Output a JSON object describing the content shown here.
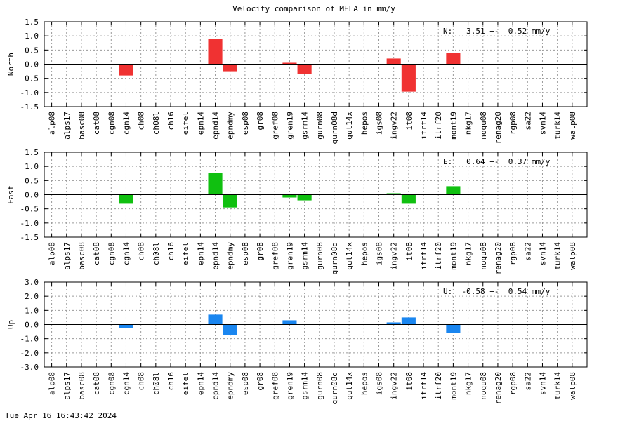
{
  "footer_timestamp": "Tue Apr 16 16:43:42 2024",
  "chart_data": {
    "type": "bar",
    "title": "Velocity comparison of MELA in mm/y",
    "categories": [
      "alp08",
      "alps17",
      "basc08",
      "cat08",
      "cgn08",
      "cgn14",
      "ch08",
      "ch08l",
      "ch16",
      "eifel",
      "epn14",
      "epnd14",
      "epndmy",
      "esp08",
      "gr08",
      "gref08",
      "gren19",
      "gsrm14",
      "gurn08",
      "gurn08d",
      "gut14x",
      "hepos",
      "igs08",
      "ingv22",
      "it08",
      "itrf14",
      "itrf20",
      "mont19",
      "nkg17",
      "noqu08",
      "renag20",
      "rgp08",
      "sa22",
      "svn14",
      "turk14",
      "walp08"
    ],
    "grid": true,
    "panels": [
      {
        "ylabel": "North",
        "annotation": "N:   3.51 +-  0.52 mm/y",
        "ylim": [
          -1.5,
          1.5
        ],
        "yticks": [
          "1.5",
          "1.0",
          "0.5",
          "0.0",
          "-0.5",
          "-1.0",
          "-1.5"
        ],
        "color": "#f03232",
        "values": [
          null,
          null,
          null,
          null,
          null,
          -0.4,
          null,
          null,
          null,
          null,
          null,
          0.9,
          -0.25,
          null,
          null,
          null,
          0.05,
          -0.35,
          null,
          null,
          null,
          null,
          null,
          0.2,
          -0.97,
          null,
          null,
          0.4,
          null,
          null,
          null,
          null,
          null,
          null,
          null,
          null
        ]
      },
      {
        "ylabel": "East",
        "annotation": "E:   0.64 +-  0.37 mm/y",
        "ylim": [
          -1.5,
          1.5
        ],
        "yticks": [
          "1.5",
          "1.0",
          "0.5",
          "0.0",
          "-0.5",
          "-1.0",
          "-1.5"
        ],
        "color": "#10c010",
        "values": [
          null,
          null,
          null,
          null,
          null,
          -0.32,
          null,
          null,
          null,
          null,
          null,
          0.78,
          -0.45,
          null,
          null,
          null,
          -0.1,
          -0.2,
          null,
          null,
          null,
          null,
          null,
          0.05,
          -0.32,
          null,
          null,
          0.3,
          null,
          null,
          null,
          null,
          null,
          null,
          null,
          null
        ]
      },
      {
        "ylabel": "Up",
        "annotation": "U:  -0.58 +-  0.54 mm/y",
        "ylim": [
          -3.0,
          3.0
        ],
        "yticks": [
          "3.0",
          "2.0",
          "1.0",
          "0.0",
          "-1.0",
          "-2.0",
          "-3.0"
        ],
        "color": "#1a86f0",
        "values": [
          null,
          null,
          null,
          null,
          null,
          -0.25,
          null,
          null,
          null,
          null,
          null,
          0.7,
          -0.75,
          null,
          null,
          null,
          0.3,
          null,
          null,
          null,
          null,
          null,
          null,
          0.15,
          0.5,
          null,
          null,
          -0.6,
          null,
          null,
          null,
          null,
          null,
          null,
          null,
          null
        ]
      }
    ]
  }
}
